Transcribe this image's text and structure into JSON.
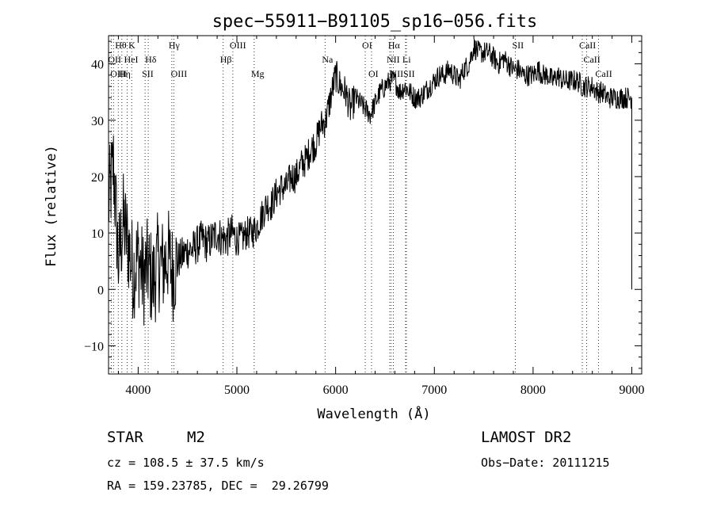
{
  "chart_data": {
    "type": "line",
    "title": "spec−55911−B91105_sp16−056.fits",
    "xlabel": "Wavelength (Å)",
    "ylabel": "Flux (relative)",
    "xlim": [
      3700,
      9100
    ],
    "ylim": [
      -15,
      45
    ],
    "xticks": [
      4000,
      5000,
      6000,
      7000,
      8000,
      9000
    ],
    "yticks": [
      -10,
      0,
      10,
      20,
      30,
      40
    ],
    "ytick_labels": [
      "−10",
      "0",
      "10",
      "20",
      "30",
      "40"
    ],
    "grid": false,
    "spectral_lines": [
      {
        "label": "Hθ",
        "x": 3798,
        "row": 0
      },
      {
        "label": "K",
        "x": 3934,
        "row": 0
      },
      {
        "label": "Hγ",
        "x": 4341,
        "row": 0
      },
      {
        "label": "OIII",
        "x": 4959,
        "row": 0
      },
      {
        "label": "OI",
        "x": 6300,
        "row": 0
      },
      {
        "label": "Hα",
        "x": 6563,
        "row": 0
      },
      {
        "label": "SII",
        "x": 7820,
        "row": 0
      },
      {
        "label": "CaII",
        "x": 8498,
        "row": 0
      },
      {
        "label": "OII",
        "x": 3727,
        "row": 1
      },
      {
        "label": "HeI",
        "x": 3889,
        "row": 1
      },
      {
        "label": "Hδ",
        "x": 4102,
        "row": 1
      },
      {
        "label": "Hβ",
        "x": 4861,
        "row": 1
      },
      {
        "label": "Na",
        "x": 5893,
        "row": 1
      },
      {
        "label": "NII",
        "x": 6548,
        "row": 1
      },
      {
        "label": "Li",
        "x": 6708,
        "row": 1
      },
      {
        "label": "CaII",
        "x": 8542,
        "row": 1
      },
      {
        "label": "OIII",
        "x": 3750,
        "row": 2
      },
      {
        "label": "Hη",
        "x": 3835,
        "row": 2
      },
      {
        "label": "SII",
        "x": 4070,
        "row": 2
      },
      {
        "label": "OIII",
        "x": 4363,
        "row": 2
      },
      {
        "label": "Mg",
        "x": 5175,
        "row": 2
      },
      {
        "label": "OI",
        "x": 6364,
        "row": 2
      },
      {
        "label": "NII",
        "x": 6584,
        "row": 2
      },
      {
        "label": "SII",
        "x": 6717,
        "row": 2
      },
      {
        "label": "CaII",
        "x": 8662,
        "row": 2
      }
    ],
    "series": [
      {
        "x": [
          3700,
          3750,
          3800,
          3850,
          3900,
          3950,
          4000,
          4050,
          4100,
          4150,
          4200,
          4250,
          4300,
          4350,
          4400,
          4450,
          4500,
          4550,
          4600,
          4650,
          4700,
          4750,
          4800,
          4850,
          4900,
          4950,
          5000,
          5050,
          5100,
          5150,
          5200,
          5250,
          5300,
          5350,
          5400,
          5450,
          5500,
          5550,
          5600,
          5650,
          5700,
          5750,
          5800,
          5850,
          5900,
          5950,
          6000,
          6050,
          6100,
          6150,
          6200,
          6250,
          6300,
          6350,
          6400,
          6450,
          6500,
          6550,
          6600,
          6650,
          6700,
          6750,
          6800,
          6850,
          6900,
          6950,
          7000,
          7050,
          7100,
          7150,
          7200,
          7250,
          7300,
          7350,
          7400,
          7450,
          7500,
          7550,
          7600,
          7650,
          7700,
          7750,
          7800,
          7850,
          7900,
          7950,
          8000,
          8050,
          8100,
          8150,
          8200,
          8250,
          8300,
          8350,
          8400,
          8450,
          8500,
          8550,
          8600,
          8650,
          8700,
          8750,
          8800,
          8850,
          8900,
          8950,
          9000
        ],
        "y": [
          15,
          22,
          5,
          12,
          8,
          3,
          6,
          2,
          4,
          1,
          5,
          4,
          6,
          3,
          5,
          6,
          7,
          7,
          8,
          9,
          8,
          9,
          10,
          9,
          9,
          10,
          9,
          9,
          10,
          10,
          11,
          13,
          15,
          15,
          17,
          18,
          18,
          20,
          20,
          22,
          23,
          25,
          26,
          29,
          30,
          34,
          38,
          36,
          35,
          32,
          34,
          33,
          32,
          31,
          33,
          35,
          36,
          37,
          37,
          35,
          36,
          35,
          34,
          34,
          35,
          36,
          37,
          38,
          38,
          39,
          38,
          37,
          39,
          40,
          43,
          42,
          42,
          42,
          41,
          40,
          41,
          40,
          39,
          39,
          38,
          38,
          38,
          39,
          38,
          38,
          37,
          38,
          37,
          37,
          37,
          37,
          36,
          36,
          36,
          35,
          35,
          34,
          34,
          34,
          34,
          34,
          34
        ]
      }
    ]
  },
  "info": {
    "object_class": "STAR",
    "subclass": "M2",
    "survey": "LAMOST DR2",
    "cz": "cz = 108.5 ± 37.5 km/s",
    "obs_date": "Obs−Date: 20111215",
    "radec": "RA = 159.23785, DEC =  29.26799"
  }
}
